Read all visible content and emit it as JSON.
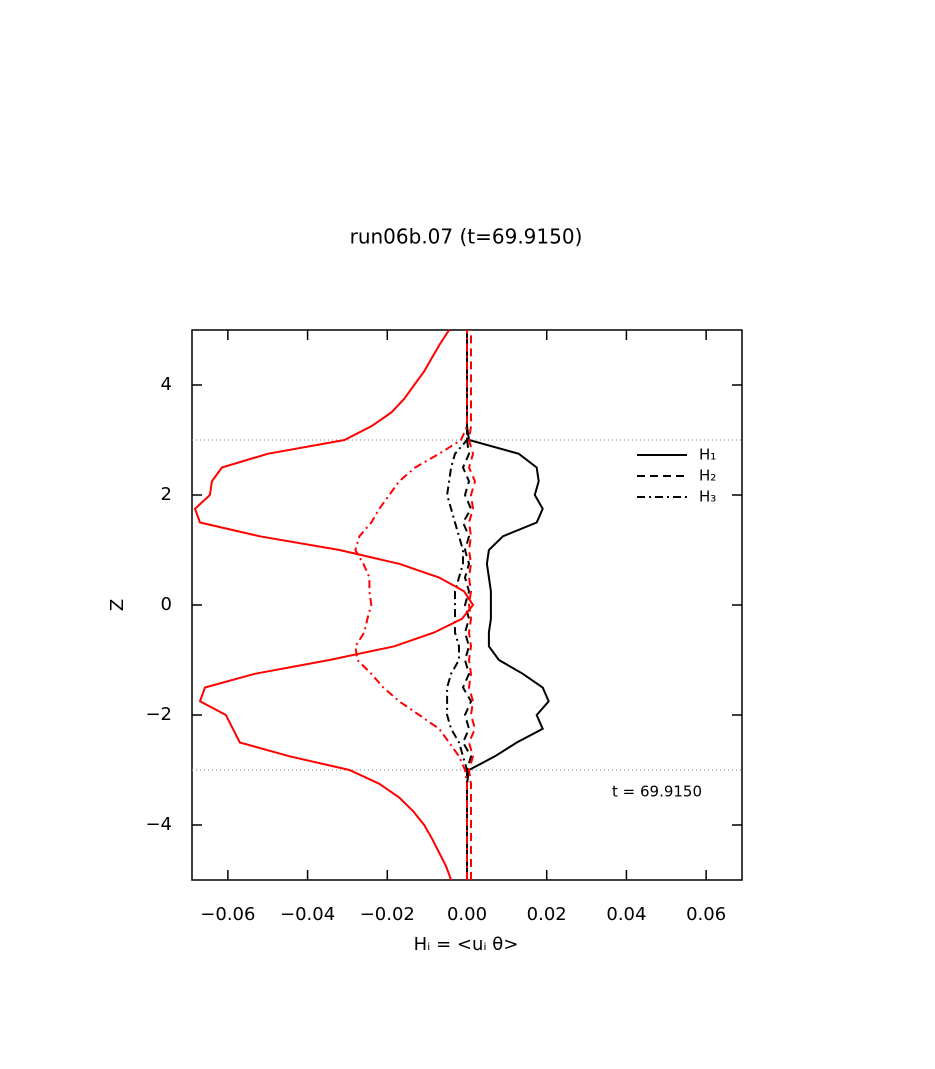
{
  "chart_data": {
    "type": "line",
    "title": "run06b.07 (t=69.9150)",
    "xlabel": "Hᵢ = <uᵢ θ>",
    "ylabel": "Z",
    "annotation": "t = 69.9150",
    "legend": "upper right",
    "xlim": [
      -0.069,
      0.069
    ],
    "ylim": [
      -5,
      5
    ],
    "xticks": [
      {
        "value": -0.06,
        "label": "−0.06"
      },
      {
        "value": -0.04,
        "label": "−0.04"
      },
      {
        "value": -0.02,
        "label": "−0.02"
      },
      {
        "value": 0,
        "label": "0.00"
      },
      0.02,
      0.04,
      0.06
    ],
    "yticks": [
      {
        "value": -4,
        "label": "−4"
      },
      {
        "value": -2,
        "label": "−2"
      },
      0,
      2,
      4
    ],
    "reference_lines": [
      3,
      -3
    ],
    "z": [
      -5,
      -4.75,
      -4.5,
      -4.25,
      -4,
      -3.75,
      -3.5,
      -3.25,
      -3,
      -2.75,
      -2.5,
      -2.25,
      -2,
      -1.75,
      -1.5,
      -1.25,
      -1,
      -0.75,
      -0.5,
      -0.25,
      0,
      0.25,
      0.5,
      0.75,
      1,
      1.25,
      1.5,
      1.75,
      2,
      2.25,
      2.5,
      2.75,
      3,
      3.25,
      3.5,
      3.75,
      4,
      4.25,
      4.5,
      4.75,
      5
    ],
    "series": [
      {
        "name": "H₁",
        "color": "#000000",
        "style": "solid",
        "values": [
          0,
          0,
          0,
          0,
          0,
          0,
          0,
          0,
          0.0005,
          0.007,
          0.0125,
          0.019,
          0.0175,
          0.0205,
          0.019,
          0.014,
          0.008,
          0.0055,
          0.0055,
          0.006,
          0.006,
          0.006,
          0.0055,
          0.005,
          0.0055,
          0.009,
          0.0175,
          0.019,
          0.017,
          0.018,
          0.0175,
          0.013,
          0.0005,
          0,
          0,
          0,
          0,
          0,
          0,
          0,
          0
        ]
      },
      {
        "name": "H₂",
        "color": "#000000",
        "style": "dashed",
        "values": [
          0,
          0,
          0,
          0,
          0,
          0,
          0,
          0,
          0,
          0.001,
          -0.001,
          0.0005,
          -0.0005,
          0.001,
          -0.001,
          0.0005,
          -0.0005,
          0.0005,
          -0.0005,
          0.0005,
          -0.0005,
          0.0005,
          -0.0005,
          0.0005,
          -0.0005,
          0.0005,
          -0.001,
          0.001,
          -0.0005,
          0.0005,
          -0.001,
          0.0005,
          0,
          0,
          0,
          0,
          0,
          0,
          0,
          0,
          0
        ]
      },
      {
        "name": "H₃",
        "color": "#000000",
        "style": "dashdot",
        "values": [
          0,
          0,
          0,
          0,
          0,
          0,
          0,
          0,
          0,
          -0.001,
          -0.002,
          -0.004,
          -0.005,
          -0.005,
          -0.005,
          -0.004,
          -0.002,
          -0.002,
          -0.003,
          -0.003,
          -0.003,
          -0.003,
          -0.002,
          -0.001,
          -0.001,
          -0.002,
          -0.003,
          -0.004,
          -0.005,
          -0.0045,
          -0.004,
          -0.003,
          0,
          0,
          0,
          0,
          0,
          0,
          0,
          0,
          0
        ]
      },
      {
        "color": "#ff0000",
        "style": "solid",
        "values": [
          -0.004,
          -0.00525,
          -0.007,
          -0.00875,
          -0.01075,
          -0.0135,
          -0.017,
          -0.022,
          -0.0295,
          -0.0445,
          -0.057,
          -0.05875,
          -0.0605,
          -0.067,
          -0.06575,
          -0.05325,
          -0.0345,
          -0.01825,
          -0.00825,
          -0.00125,
          0.0015,
          -0.00075,
          -0.007,
          -0.017,
          -0.032,
          -0.052,
          -0.067,
          -0.06825,
          -0.0645,
          -0.064,
          -0.0615,
          -0.05,
          -0.03075,
          -0.024,
          -0.019,
          -0.01575,
          -0.01325,
          -0.01075,
          -0.00875,
          -0.00675,
          -0.0045
        ]
      },
      {
        "color": "#ff0000",
        "style": "dashed",
        "values": [
          0.001,
          0.001,
          0.001,
          0.001,
          0.001,
          0.001,
          0.001,
          0.001,
          0.0005,
          0.0015,
          0.0005,
          0.002,
          0.001,
          0.0015,
          0.0005,
          0.001,
          0.0005,
          0.001,
          0.0005,
          0.001,
          0.0005,
          0.001,
          0.0005,
          0.001,
          0.0005,
          0.001,
          0.0005,
          0.0015,
          0.001,
          0.002,
          0.0005,
          0.0015,
          0.0005,
          0.001,
          0.001,
          0.001,
          0.001,
          0.001,
          0.001,
          0.001,
          0.001
        ]
      },
      {
        "color": "#ff0000",
        "style": "dashdot",
        "values": [
          0,
          0,
          0,
          0,
          0,
          0,
          0,
          0,
          -0.0005,
          -0.002,
          -0.0045,
          -0.007,
          -0.012,
          -0.017,
          -0.021,
          -0.024,
          -0.0275,
          -0.028,
          -0.0258,
          -0.025,
          -0.024,
          -0.0245,
          -0.0245,
          -0.026,
          -0.028,
          -0.027,
          -0.024,
          -0.022,
          -0.0195,
          -0.017,
          -0.013,
          -0.007,
          -0.0015,
          0,
          0,
          0,
          0,
          0,
          0,
          0,
          0
        ]
      }
    ]
  }
}
